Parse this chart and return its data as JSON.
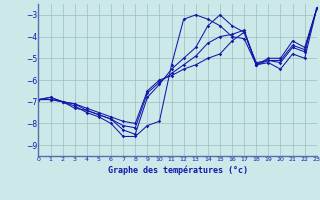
{
  "xlabel": "Graphe des températures (°c)",
  "bg_color": "#cce8e8",
  "grid_color": "#99bfbf",
  "line_color": "#1515aa",
  "xlim": [
    0,
    23
  ],
  "ylim": [
    -9.5,
    -2.5
  ],
  "yticks": [
    -9,
    -8,
    -7,
    -6,
    -5,
    -4,
    -3
  ],
  "xticks": [
    0,
    1,
    2,
    3,
    4,
    5,
    6,
    7,
    8,
    9,
    10,
    11,
    12,
    13,
    14,
    15,
    16,
    17,
    18,
    19,
    20,
    21,
    22,
    23
  ],
  "line1_x": [
    0,
    1,
    2,
    3,
    4,
    5,
    6,
    7,
    8,
    9,
    10,
    11,
    12,
    13,
    14,
    15,
    16,
    17,
    18,
    19,
    20,
    21,
    22,
    23
  ],
  "line1_y": [
    -6.9,
    -6.9,
    -7.0,
    -7.2,
    -7.5,
    -7.7,
    -8.0,
    -8.6,
    -8.6,
    -8.1,
    -7.9,
    -5.3,
    -3.2,
    -3.0,
    -3.2,
    -3.5,
    -4.0,
    -4.1,
    -5.3,
    -5.2,
    -5.5,
    -4.8,
    -5.0,
    -2.7
  ],
  "line2_x": [
    0,
    1,
    2,
    3,
    4,
    5,
    6,
    7,
    8,
    9,
    10,
    11,
    12,
    13,
    14,
    15,
    16,
    17,
    18,
    19,
    20,
    21,
    22,
    23
  ],
  "line2_y": [
    -6.9,
    -6.9,
    -7.0,
    -7.3,
    -7.4,
    -7.6,
    -7.8,
    -8.3,
    -8.5,
    -6.8,
    -6.2,
    -5.5,
    -5.0,
    -4.5,
    -3.5,
    -3.0,
    -3.5,
    -3.8,
    -5.2,
    -5.1,
    -5.2,
    -4.5,
    -4.7,
    -2.7
  ],
  "line3_x": [
    0,
    1,
    2,
    3,
    4,
    5,
    6,
    7,
    8,
    9,
    10,
    11,
    12,
    13,
    14,
    15,
    16,
    17,
    18,
    19,
    20,
    21,
    22,
    23
  ],
  "line3_y": [
    -6.9,
    -6.8,
    -7.0,
    -7.1,
    -7.3,
    -7.5,
    -7.7,
    -7.9,
    -8.0,
    -6.5,
    -6.0,
    -5.8,
    -5.5,
    -5.3,
    -5.0,
    -4.8,
    -4.2,
    -3.8,
    -5.3,
    -5.0,
    -5.0,
    -4.2,
    -4.5,
    -2.7
  ],
  "line4_x": [
    0,
    1,
    2,
    3,
    4,
    5,
    6,
    7,
    8,
    9,
    10,
    11,
    12,
    13,
    14,
    15,
    16,
    17,
    18,
    19,
    20,
    21,
    22,
    23
  ],
  "line4_y": [
    -6.9,
    -6.8,
    -7.0,
    -7.1,
    -7.4,
    -7.6,
    -7.8,
    -8.1,
    -8.2,
    -6.6,
    -6.1,
    -5.7,
    -5.3,
    -4.9,
    -4.3,
    -4.0,
    -3.9,
    -3.7,
    -5.3,
    -5.1,
    -5.1,
    -4.4,
    -4.6,
    -2.7
  ]
}
